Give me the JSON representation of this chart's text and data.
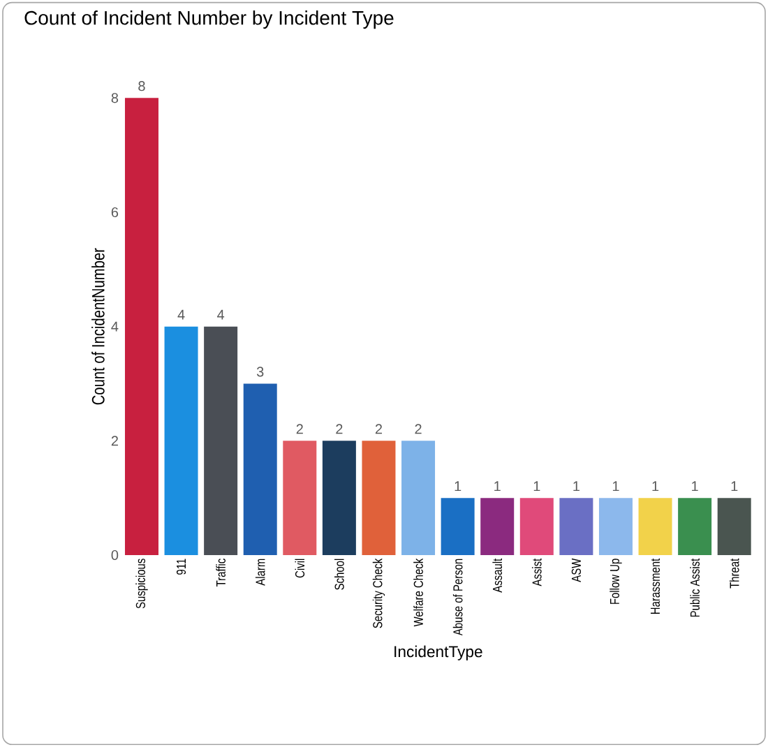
{
  "chart_data": {
    "type": "bar",
    "title": "Count of Incident Number by Incident Type",
    "xlabel": "IncidentType",
    "ylabel": "Count of IncidentNumber",
    "categories": [
      "Suspicious",
      "911",
      "Traffic",
      "Alarm",
      "Civil",
      "School",
      "Security Check",
      "Welfare Check",
      "Abuse of Person",
      "Assault",
      "Assist",
      "ASW",
      "Follow Up",
      "Harassment",
      "Public Assist",
      "Threat"
    ],
    "values": [
      8,
      4,
      4,
      3,
      2,
      2,
      2,
      2,
      1,
      1,
      1,
      1,
      1,
      1,
      1,
      1
    ],
    "colors": [
      "#c8203f",
      "#1b8fe0",
      "#4a4e55",
      "#1f5fb0",
      "#e05a62",
      "#1c3d5e",
      "#e0613a",
      "#7db2e8",
      "#1a6fc4",
      "#8b2a7f",
      "#e04a7a",
      "#6a6fc4",
      "#8cb8ec",
      "#f2d24a",
      "#3a8f4f",
      "#4a5550"
    ],
    "ylim": [
      0,
      8
    ],
    "yticks": [
      0,
      2,
      4,
      6,
      8
    ],
    "data_labels": true,
    "grid": false
  }
}
